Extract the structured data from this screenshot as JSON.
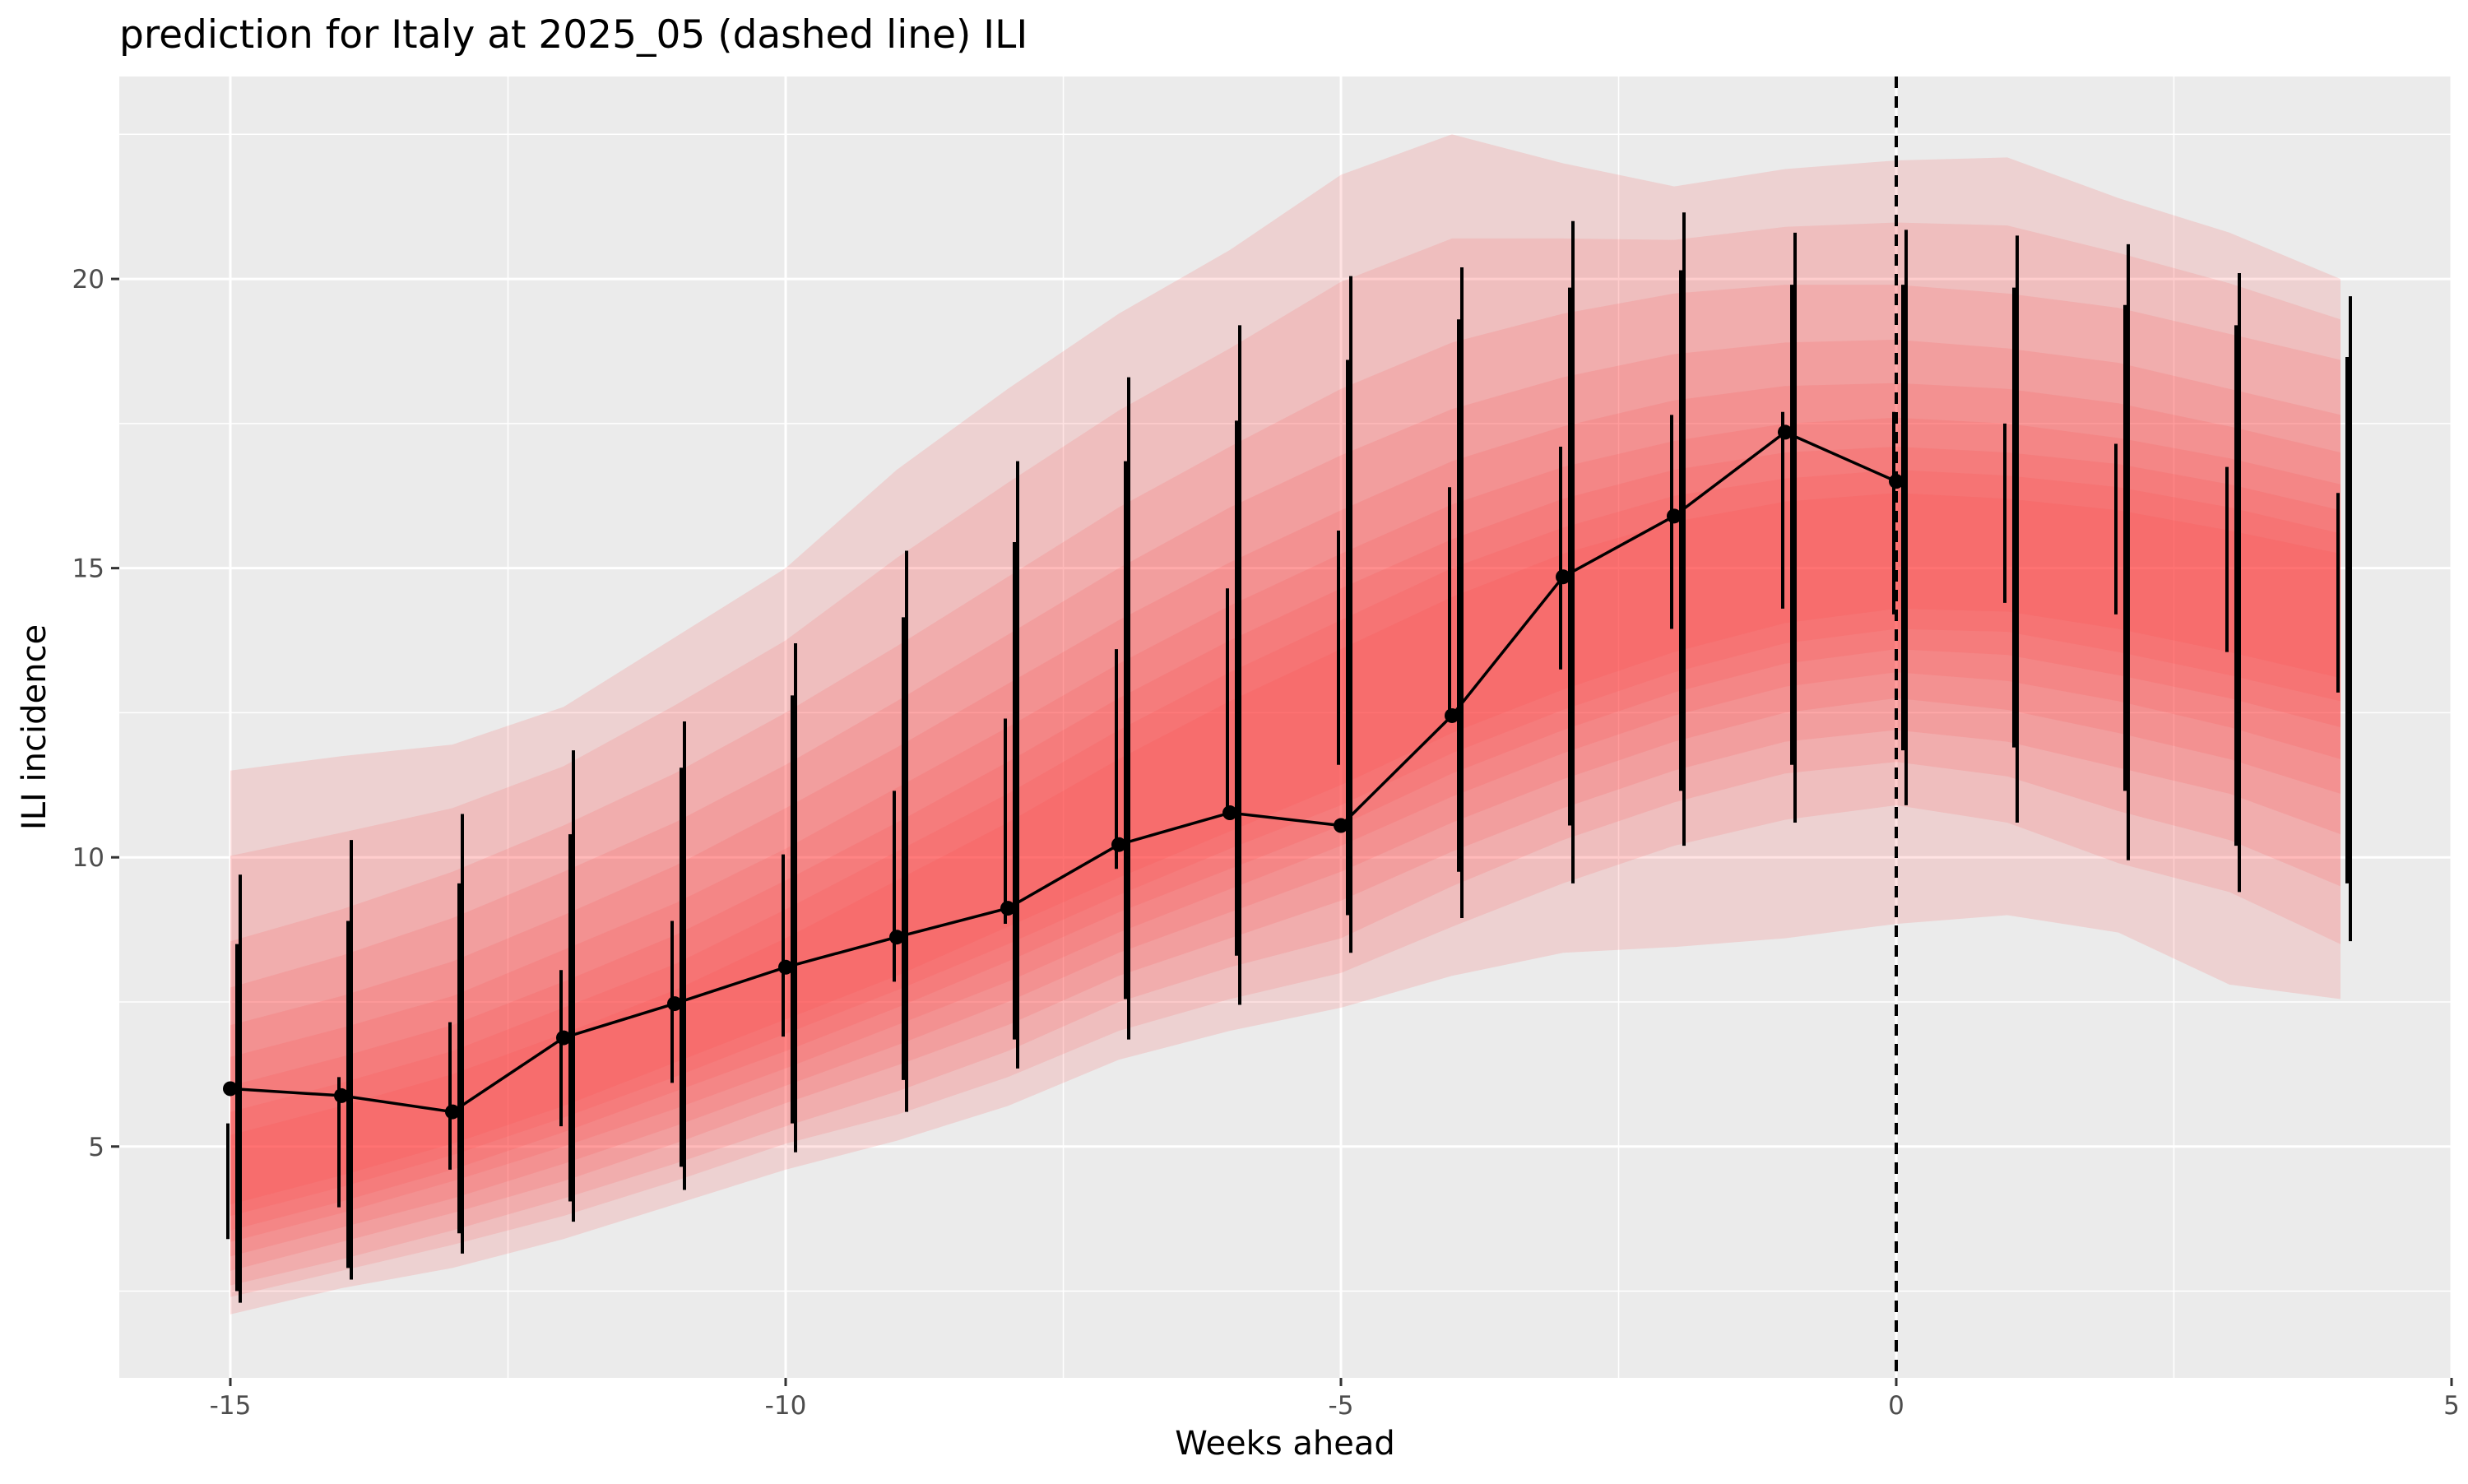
{
  "chart_data": {
    "type": "line",
    "title": "prediction for Italy at 2025_05 (dashed line) ILI",
    "xlabel": "Weeks ahead",
    "ylabel": "ILI incidence",
    "xlim": [
      -16,
      5
    ],
    "ylim": [
      1,
      23.5
    ],
    "x_ticks": [
      -15,
      -10,
      -5,
      0,
      5
    ],
    "x_tick_labels": [
      "-15",
      "-10",
      "-5",
      "0",
      "5"
    ],
    "y_ticks": [
      5,
      10,
      15,
      20
    ],
    "y_tick_labels": [
      "5",
      "10",
      "15",
      "20"
    ],
    "grid": true,
    "reference_line_x": 0,
    "colors": {
      "panel_background": "#ebebeb",
      "grid_major": "#ffffff",
      "band_fill": "#ff3b3b",
      "line": "#000000"
    },
    "observed": {
      "x": [
        -15,
        -14,
        -13,
        -12,
        -11,
        -10,
        -9,
        -8,
        -7,
        -6,
        -5,
        -4,
        -3,
        -2,
        -1,
        0
      ],
      "y": [
        6.0,
        5.88,
        5.6,
        6.88,
        7.47,
        8.1,
        8.62,
        9.12,
        10.22,
        10.77,
        10.55,
        12.45,
        14.85,
        15.9,
        17.35,
        16.5
      ]
    },
    "forecast_bands": {
      "x": [
        -15,
        -14,
        -13,
        -12,
        -11,
        -10,
        -9,
        -8,
        -7,
        -6,
        -5,
        -4,
        -3,
        -2,
        -1,
        0,
        1,
        2,
        3,
        4
      ],
      "levels": [
        {
          "lower": [
            2.1,
            2.55,
            2.9,
            3.4,
            4.0,
            4.6,
            5.1,
            5.7,
            6.5,
            7.0,
            7.4,
            7.95,
            8.35,
            8.45,
            8.6,
            8.85,
            9.0,
            8.7,
            7.8,
            7.55
          ],
          "upper": [
            11.5,
            11.75,
            11.95,
            12.6,
            13.8,
            15.0,
            16.7,
            18.1,
            19.4,
            20.5,
            21.8,
            22.5,
            22.0,
            21.6,
            21.9,
            22.05,
            22.1,
            21.4,
            20.8,
            20.0
          ]
        },
        {
          "lower": [
            2.4,
            2.85,
            3.3,
            3.8,
            4.4,
            5.05,
            5.55,
            6.2,
            7.0,
            7.55,
            8.0,
            8.8,
            9.55,
            10.2,
            10.65,
            10.9,
            10.6,
            9.9,
            9.4,
            8.5
          ]
        },
        {
          "lower": [
            2.6,
            3.05,
            3.55,
            4.1,
            4.7,
            5.35,
            5.95,
            6.65,
            7.5,
            8.1,
            8.6,
            9.5,
            10.3,
            10.95,
            11.45,
            11.65,
            11.4,
            10.8,
            10.3,
            9.5
          ],
          "upper": [
            8.55,
            9.1,
            9.75,
            10.55,
            11.45,
            12.5,
            13.65,
            14.85,
            16.05,
            17.1,
            18.1,
            18.9,
            19.4,
            19.75,
            19.9,
            19.9,
            19.75,
            19.5,
            19.05,
            18.6
          ]
        },
        {
          "lower": [
            2.85,
            3.35,
            3.85,
            4.4,
            5.05,
            5.75,
            6.4,
            7.1,
            7.95,
            8.6,
            9.25,
            10.1,
            10.85,
            11.5,
            12.0,
            12.2,
            12.0,
            11.55,
            11.1,
            10.4
          ],
          "upper": [
            7.75,
            8.3,
            8.95,
            9.75,
            10.6,
            11.6,
            12.7,
            13.85,
            15.0,
            16.05,
            16.95,
            17.75,
            18.3,
            18.7,
            18.9,
            18.95,
            18.8,
            18.55,
            18.1,
            17.65
          ]
        },
        {
          "lower": [
            3.1,
            3.6,
            4.1,
            4.7,
            5.35,
            6.05,
            6.75,
            7.5,
            8.35,
            9.05,
            9.75,
            10.6,
            11.35,
            12.0,
            12.5,
            12.75,
            12.55,
            12.15,
            11.7,
            11.1
          ],
          "upper": [
            7.1,
            7.6,
            8.2,
            9.0,
            9.85,
            10.85,
            11.9,
            13.0,
            14.1,
            15.1,
            16.0,
            16.85,
            17.45,
            17.9,
            18.15,
            18.2,
            18.1,
            17.85,
            17.45,
            17.0
          ]
        },
        {
          "lower": [
            3.35,
            3.85,
            4.4,
            5.0,
            5.65,
            6.35,
            7.1,
            7.85,
            8.7,
            9.45,
            10.2,
            11.05,
            11.8,
            12.45,
            12.95,
            13.2,
            13.05,
            12.7,
            12.25,
            11.7
          ],
          "upper": [
            6.55,
            7.05,
            7.6,
            8.4,
            9.2,
            10.15,
            11.2,
            12.25,
            13.35,
            14.35,
            15.25,
            16.1,
            16.75,
            17.2,
            17.5,
            17.6,
            17.5,
            17.25,
            16.9,
            16.45
          ]
        },
        {
          "lower": [
            3.55,
            4.05,
            4.6,
            5.25,
            5.95,
            6.65,
            7.4,
            8.2,
            9.05,
            9.8,
            10.55,
            11.45,
            12.2,
            12.85,
            13.35,
            13.6,
            13.5,
            13.15,
            12.75,
            12.25
          ],
          "upper": [
            6.05,
            6.55,
            7.1,
            7.85,
            8.65,
            9.6,
            10.6,
            11.65,
            12.75,
            13.75,
            14.65,
            15.5,
            16.2,
            16.7,
            17.0,
            17.1,
            17.0,
            16.8,
            16.45,
            16.0
          ]
        },
        {
          "lower": [
            3.8,
            4.3,
            4.85,
            5.5,
            6.2,
            6.95,
            7.7,
            8.5,
            9.35,
            10.15,
            10.9,
            11.8,
            12.55,
            13.2,
            13.7,
            13.95,
            13.9,
            13.55,
            13.15,
            12.7
          ],
          "upper": [
            5.6,
            6.1,
            6.65,
            7.4,
            8.15,
            9.1,
            10.1,
            11.1,
            12.2,
            13.2,
            14.1,
            15.0,
            15.7,
            16.25,
            16.55,
            16.7,
            16.6,
            16.4,
            16.05,
            15.6
          ]
        },
        {
          "lower": [
            4.0,
            4.5,
            5.05,
            5.7,
            6.45,
            7.2,
            7.95,
            8.8,
            9.65,
            10.45,
            11.25,
            12.15,
            12.9,
            13.55,
            14.05,
            14.3,
            14.25,
            13.95,
            13.55,
            13.1
          ],
          "upper": [
            5.2,
            5.7,
            6.25,
            6.95,
            7.7,
            8.6,
            9.6,
            10.6,
            11.7,
            12.7,
            13.6,
            14.5,
            15.25,
            15.8,
            16.15,
            16.3,
            16.2,
            16.0,
            15.65,
            15.25
          ]
        }
      ]
    },
    "intervals": {
      "x": [
        -15,
        -14,
        -13,
        -12,
        -11,
        -10,
        -9,
        -8,
        -7,
        -6,
        -5,
        -4,
        -3,
        -2,
        -1,
        0,
        1,
        2,
        3,
        4
      ],
      "wide": [
        [
          2.3,
          9.7
        ],
        [
          2.7,
          10.3
        ],
        [
          3.15,
          10.75
        ],
        [
          3.7,
          11.85
        ],
        [
          4.25,
          12.35
        ],
        [
          4.9,
          13.7
        ],
        [
          5.6,
          15.3
        ],
        [
          6.35,
          16.85
        ],
        [
          6.85,
          18.3
        ],
        [
          7.45,
          19.2
        ],
        [
          8.35,
          20.05
        ],
        [
          8.95,
          20.2
        ],
        [
          9.55,
          21.0
        ],
        [
          10.2,
          21.15
        ],
        [
          10.6,
          20.8
        ],
        [
          10.9,
          20.85
        ],
        [
          10.6,
          20.75
        ],
        [
          9.95,
          20.6
        ],
        [
          9.4,
          20.1
        ],
        [
          8.55,
          19.7
        ]
      ],
      "medium": [
        [
          2.5,
          8.5
        ],
        [
          2.9,
          8.9
        ],
        [
          3.5,
          9.55
        ],
        [
          4.05,
          10.4
        ],
        [
          4.65,
          11.55
        ],
        [
          5.4,
          12.8
        ],
        [
          6.15,
          14.15
        ],
        [
          6.85,
          15.45
        ],
        [
          7.55,
          16.85
        ],
        [
          8.3,
          17.55
        ],
        [
          9.0,
          18.6
        ],
        [
          9.75,
          19.3
        ],
        [
          10.55,
          19.85
        ],
        [
          11.15,
          20.15
        ],
        [
          11.6,
          19.9
        ],
        [
          11.85,
          19.9
        ],
        [
          11.9,
          19.85
        ],
        [
          11.15,
          19.55
        ],
        [
          10.2,
          19.2
        ],
        [
          9.55,
          18.65
        ]
      ],
      "narrow": [
        [
          3.4,
          5.4
        ],
        [
          3.95,
          6.2
        ],
        [
          4.6,
          7.15
        ],
        [
          5.35,
          8.05
        ],
        [
          6.1,
          8.9
        ],
        [
          6.9,
          10.05
        ],
        [
          7.85,
          11.15
        ],
        [
          8.85,
          12.4
        ],
        [
          9.8,
          13.6
        ],
        [
          10.75,
          14.65
        ],
        [
          11.6,
          15.65
        ],
        [
          12.45,
          16.4
        ],
        [
          13.25,
          17.1
        ],
        [
          13.95,
          17.65
        ],
        [
          14.3,
          17.7
        ],
        [
          14.2,
          17.7
        ],
        [
          14.4,
          17.5
        ],
        [
          14.2,
          17.15
        ],
        [
          13.55,
          16.75
        ],
        [
          12.85,
          16.3
        ]
      ]
    }
  }
}
